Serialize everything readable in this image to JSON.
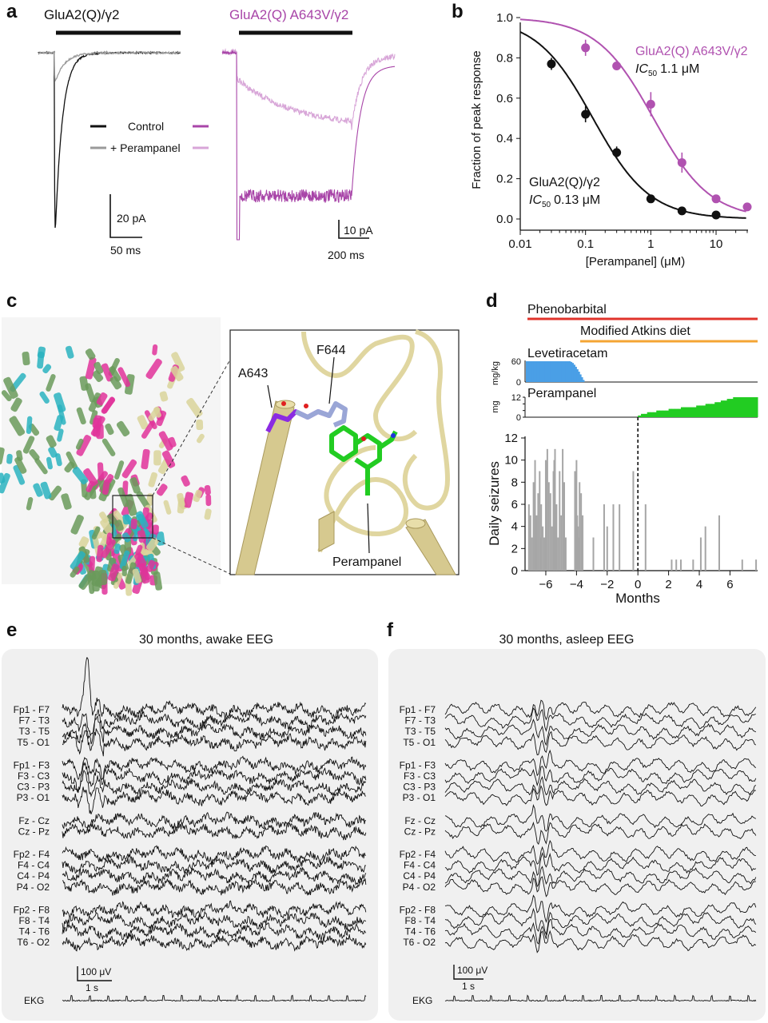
{
  "panels": {
    "a": {
      "letter": "a",
      "left_title": "GluA2(Q)/γ2",
      "right_title": "GluA2(Q) A643V/γ2",
      "legend_control": "Control",
      "legend_perampanel": "+ Perampanel",
      "left_scale_y": "20 pA",
      "left_scale_x": "50 ms",
      "right_scale_y": "10 pA",
      "right_scale_x": "200 ms",
      "colors": {
        "control_wt": "#111111",
        "peramp_wt": "#9a9a9a",
        "control_mut": "#a845a8",
        "peramp_mut": "#d8a6d8"
      }
    },
    "b": {
      "letter": "b"
    },
    "c": {
      "letter": "c",
      "label_a643": "A643",
      "label_f644": "F644",
      "label_perampanel": "Perampanel"
    },
    "d": {
      "letter": "d",
      "drug_phenobarbital": "Phenobarbital",
      "drug_atkins": "Modified Atkins diet",
      "drug_levetiracetam": "Levetiracetam",
      "drug_perampanel": "Perampanel",
      "lev_unit": "mg/kg",
      "lev_tick": "60",
      "lev_zero": "0",
      "per_unit": "mg",
      "per_ticks": [
        "12",
        "8",
        "4",
        "0"
      ],
      "colors": {
        "phenobarbital": "#e0332b",
        "atkins": "#f4a534",
        "levetiracetam": "#4a9fe6",
        "perampanel": "#22cc22",
        "bars": "#a6a6a6"
      }
    },
    "e": {
      "letter": "e",
      "title": "30 months, awake EEG",
      "scale_y": "100 μV",
      "scale_x": "1 s",
      "ekg": "EKG",
      "channels": [
        "Fp1 - F7",
        "F7 - T3",
        "T3 - T5",
        "T5 - O1",
        "Fp1 - F3",
        "F3 - C3",
        "C3 - P3",
        "P3 - O1",
        "Fz - Cz",
        "Cz - Pz",
        "Fp2 - F4",
        "F4 - C4",
        "C4 - P4",
        "P4 - O2",
        "Fp2 - F8",
        "F8 - T4",
        "T4 - T6",
        "T6 - O2"
      ]
    },
    "f": {
      "letter": "f",
      "title": "30 months, asleep EEG",
      "scale_y": "100 μV",
      "scale_x": "1 s",
      "ekg": "EKG",
      "channels": [
        "Fp1 - F7",
        "F7 - T3",
        "T3 - T5",
        "T5 - O1",
        "Fp1 - F3",
        "F3 - C3",
        "C3 - P3",
        "P3 - O1",
        "Fz - Cz",
        "Cz - Pz",
        "Fp2 - F4",
        "F4 - C4",
        "C4 - P4",
        "P4 - O2",
        "Fp2 - F8",
        "F8 - T4",
        "T4 - T6",
        "T6 - O2"
      ]
    }
  },
  "chart_data": [
    {
      "id": "b",
      "type": "scatter",
      "xlabel": "[Perampanel] (μM)",
      "ylabel": "Fraction of peak response",
      "xscale": "log",
      "xlim": [
        0.01,
        30
      ],
      "ylim": [
        0,
        1.0
      ],
      "xticks": [
        "0.01",
        "0.1",
        "1",
        "10"
      ],
      "yticks": [
        "0.0",
        "0.2",
        "0.4",
        "0.6",
        "0.8",
        "1.0"
      ],
      "annotation_wt_name": "GluA2(Q)/γ2",
      "annotation_wt_ic50_label": "IC",
      "annotation_wt_ic50_sub": "50",
      "annotation_wt_ic50_value": "0.13 μM",
      "annotation_mut_name": "GluA2(Q) A643V/γ2",
      "annotation_mut_ic50_label": "IC",
      "annotation_mut_ic50_sub": "50",
      "annotation_mut_ic50_value": "1.1 μM",
      "series": [
        {
          "name": "GluA2(Q)/γ2",
          "color": "#111111",
          "ic50": 0.13,
          "x": [
            0.03,
            0.1,
            0.3,
            1,
            3,
            10
          ],
          "y": [
            0.77,
            0.52,
            0.33,
            0.1,
            0.04,
            0.02
          ],
          "err": [
            0.03,
            0.04,
            0.03,
            0.02,
            0.01,
            0.01
          ]
        },
        {
          "name": "GluA2(Q) A643V/γ2",
          "color": "#b052b0",
          "ic50": 1.1,
          "x": [
            0.1,
            0.3,
            1,
            3,
            10,
            30
          ],
          "y": [
            0.85,
            0.76,
            0.57,
            0.28,
            0.1,
            0.06
          ],
          "err": [
            0.04,
            0.02,
            0.06,
            0.05,
            0.02,
            0.01
          ]
        }
      ]
    },
    {
      "id": "d",
      "type": "bar",
      "xlabel": "Months",
      "ylabel": "Daily seizures",
      "xlim": [
        -7.3,
        7.8
      ],
      "ylim": [
        0,
        12
      ],
      "xticks": [
        "−6",
        "−4",
        "−2",
        "0",
        "2",
        "4",
        "6"
      ],
      "yticks": [
        "0",
        "2",
        "4",
        "6",
        "8",
        "10",
        "12"
      ],
      "treatment_start_month": 0,
      "x": [
        -7.1,
        -7.0,
        -6.9,
        -6.8,
        -6.7,
        -6.6,
        -6.5,
        -6.4,
        -6.35,
        -6.3,
        -6.2,
        -6.1,
        -6.0,
        -5.9,
        -5.8,
        -5.7,
        -5.6,
        -5.5,
        -5.45,
        -5.4,
        -5.3,
        -5.2,
        -5.1,
        -5.0,
        -4.9,
        -4.8,
        -4.7,
        -4.1,
        -4.0,
        -3.95,
        -3.9,
        -3.85,
        -3.8,
        -3.7,
        -3.6,
        -2.9,
        -2.2,
        -2.0,
        -1.6,
        -1.2,
        -0.3,
        0.5,
        2.2,
        2.5,
        2.8,
        3.6,
        4.1,
        4.4,
        5.3,
        6.8,
        7.7
      ],
      "values": [
        6,
        5,
        3,
        8,
        10,
        5,
        7,
        9,
        3,
        6,
        4,
        3,
        10,
        11,
        8,
        7,
        4,
        9,
        10,
        11,
        6,
        3,
        9,
        5,
        11,
        8,
        3,
        9,
        10,
        5,
        4,
        3,
        8,
        7,
        5,
        3,
        6,
        4,
        6,
        6,
        9,
        6,
        1,
        1,
        1,
        1,
        3,
        4,
        5,
        1,
        1
      ],
      "lev_dose": {
        "months": [
          -7.3,
          -7.2,
          -7.1,
          -7.0,
          -6.9,
          -6.8,
          -6.7,
          -6.6,
          -6.5,
          -6.4,
          -6.3,
          -6.2,
          -6.1,
          -6.0,
          -5.9,
          -5.8,
          -5.7,
          -5.6,
          -5.5,
          -5.4,
          -5.3,
          -5.2,
          -5.1,
          -5.0,
          -4.9,
          -4.8,
          -4.7,
          -4.6,
          -4.5,
          -4.4,
          -4.3,
          -4.2,
          -4.1,
          -4.0,
          -3.9,
          -3.8,
          -3.7,
          -3.6
        ],
        "mgkg": [
          60,
          60,
          60,
          60,
          60,
          60,
          60,
          60,
          60,
          60,
          60,
          60,
          60,
          60,
          60,
          60,
          60,
          60,
          60,
          60,
          60,
          60,
          60,
          60,
          60,
          60,
          60,
          60,
          60,
          58,
          55,
          50,
          44,
          37,
          30,
          22,
          14,
          6
        ]
      },
      "per_dose": {
        "months": [
          0,
          0.2,
          0.4,
          0.6,
          0.8,
          1.0,
          1.2,
          1.4,
          1.6,
          1.8,
          2.0,
          2.2,
          2.4,
          2.6,
          2.8,
          3.0,
          3.2,
          3.4,
          3.6,
          3.8,
          4.0,
          4.2,
          4.4,
          4.6,
          4.8,
          5.0,
          5.2,
          5.4,
          5.6,
          5.8,
          6.0,
          6.2,
          6.4,
          6.6,
          6.8,
          7.0,
          7.2,
          7.4,
          7.6
        ],
        "mg": [
          1,
          2,
          2,
          3,
          3,
          3,
          4,
          4,
          4,
          4,
          5,
          5,
          5,
          5,
          6,
          6,
          6,
          6,
          6,
          7,
          7,
          7,
          8,
          8,
          8,
          9,
          9,
          10,
          10,
          11,
          11,
          12,
          12,
          12,
          12,
          12,
          12,
          12,
          12
        ]
      }
    }
  ]
}
